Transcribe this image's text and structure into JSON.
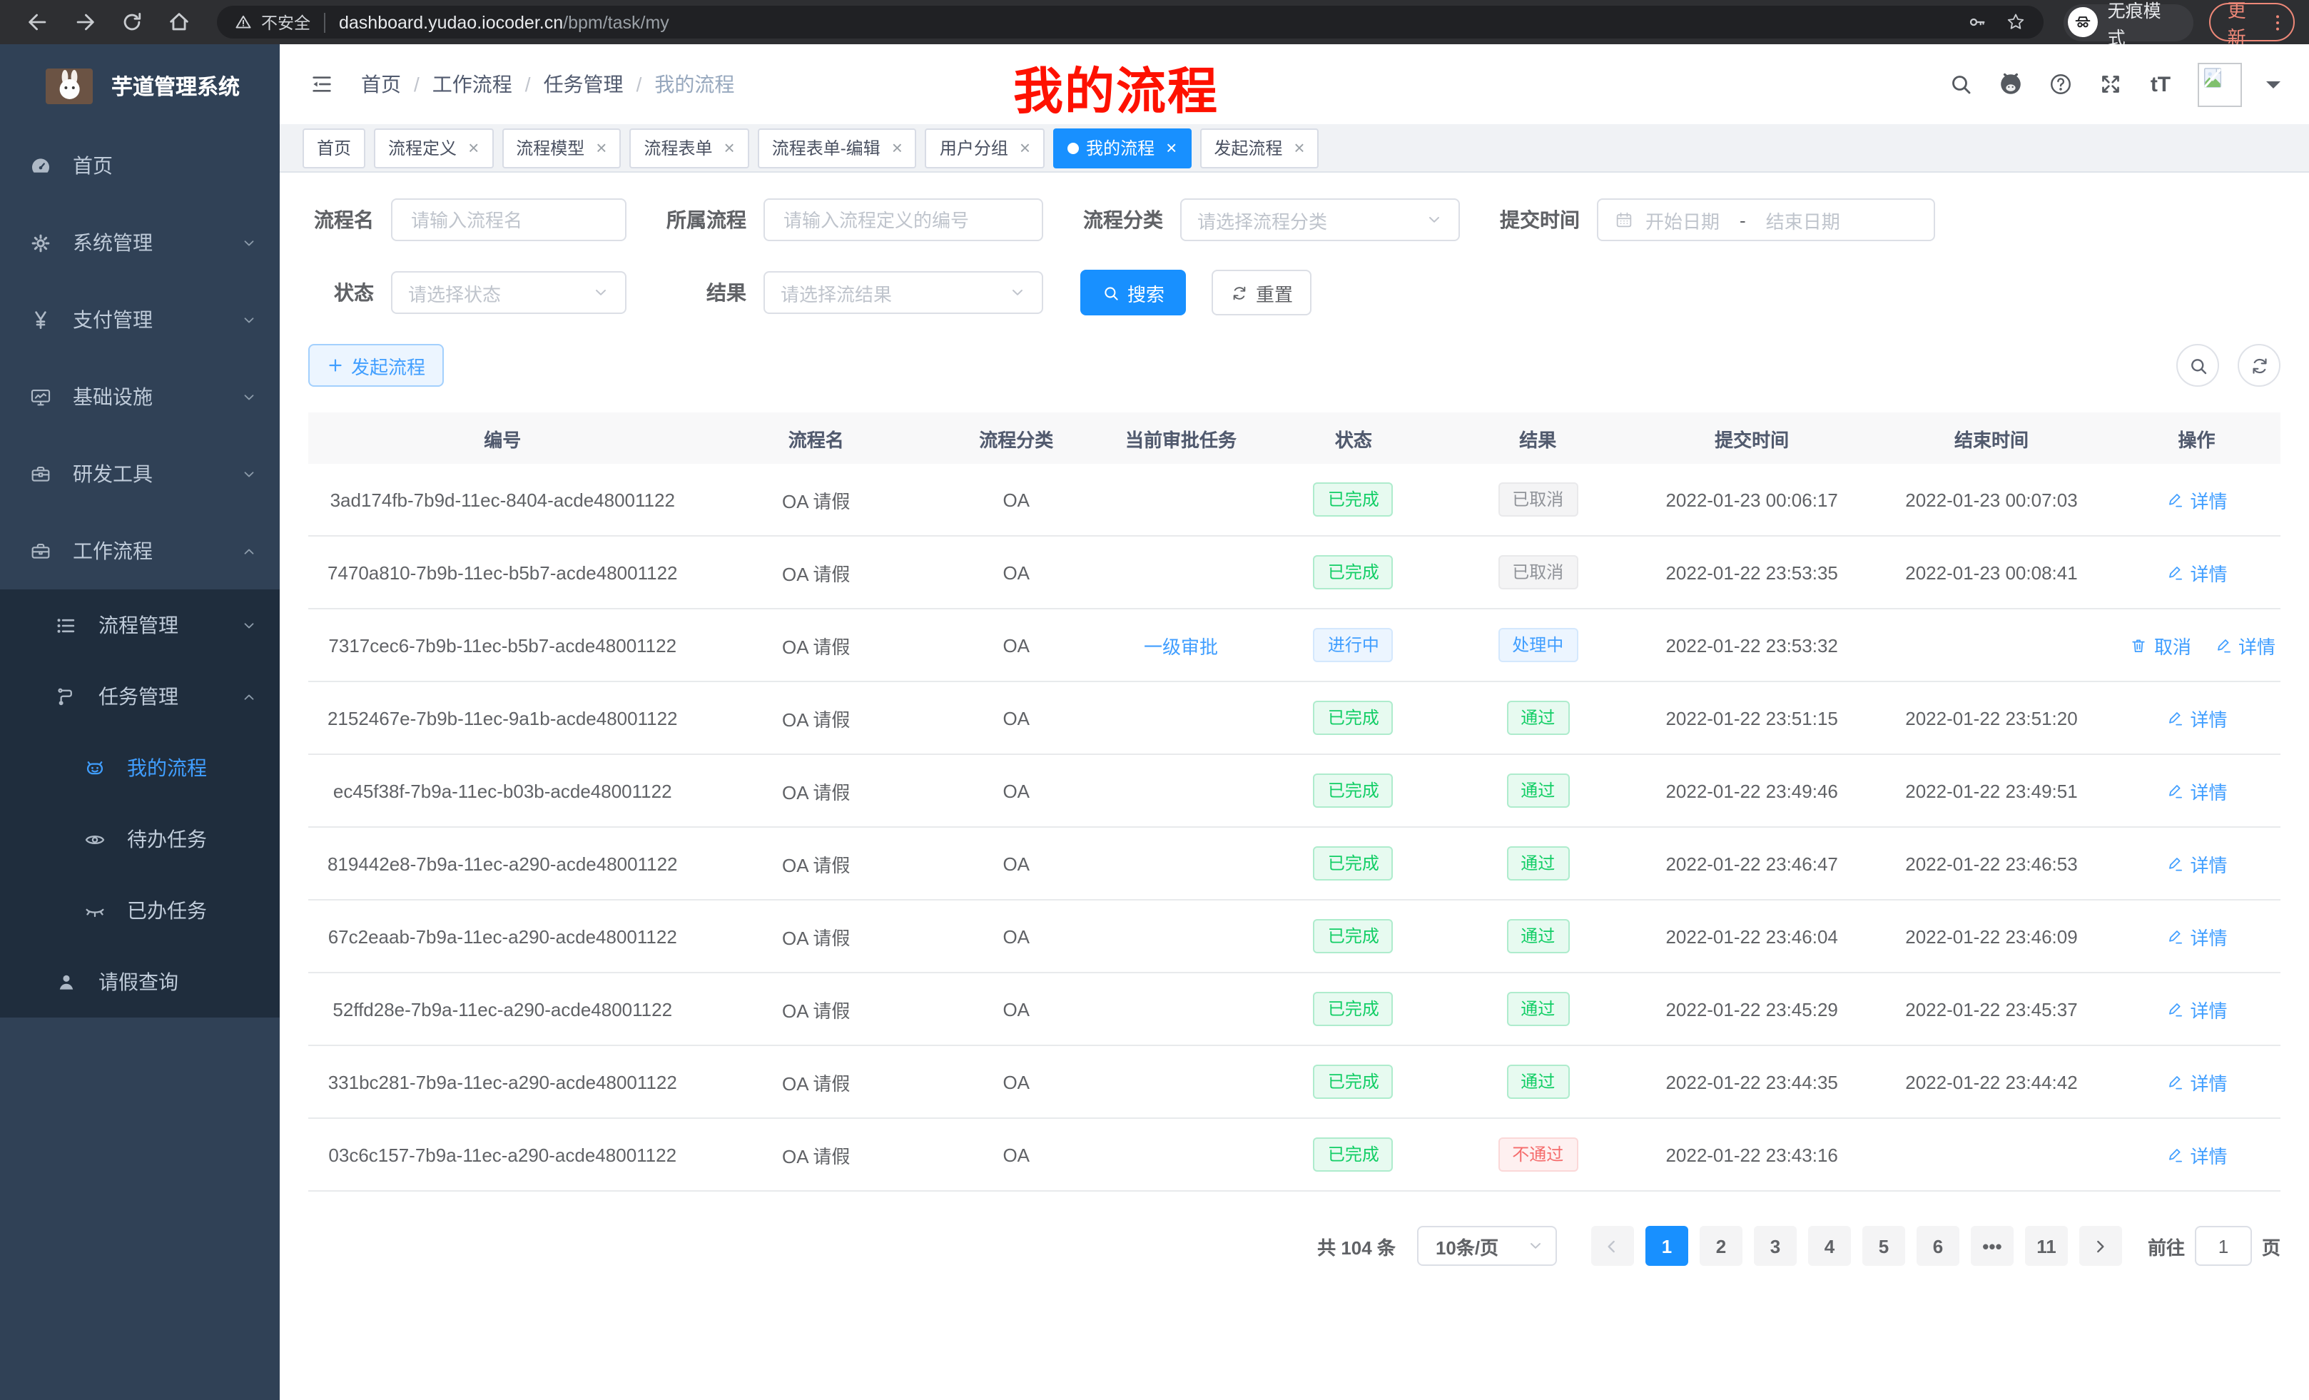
{
  "browser": {
    "security_label": "不安全",
    "url_host": "dashboard.yudao.iocoder.cn",
    "url_path": "/bpm/task/my",
    "nav_icons": [
      "back-icon",
      "forward-icon",
      "reload-icon",
      "home-icon"
    ],
    "addr_icons": [
      "key-icon",
      "star-icon"
    ],
    "incognito_label": "无痕模式",
    "update_label": "更新"
  },
  "sidebar": {
    "app_title": "芋道管理系统",
    "menu": [
      {
        "label": "首页",
        "icon": "dashboard-icon",
        "chevron": "",
        "level": 1,
        "active": false
      },
      {
        "label": "系统管理",
        "icon": "gear-icon",
        "chevron": "down",
        "level": 1,
        "active": false
      },
      {
        "label": "支付管理",
        "icon": "yen-icon",
        "chevron": "down",
        "level": 1,
        "active": false
      },
      {
        "label": "基础设施",
        "icon": "monitor-icon",
        "chevron": "down",
        "level": 1,
        "active": false
      },
      {
        "label": "研发工具",
        "icon": "toolbox-icon",
        "chevron": "down",
        "level": 1,
        "active": false
      },
      {
        "label": "工作流程",
        "icon": "briefcase-icon",
        "chevron": "up",
        "level": 1,
        "active": false
      }
    ],
    "submenu": [
      {
        "label": "流程管理",
        "icon": "list-icon",
        "chevron": "down",
        "level": 2,
        "active": false
      },
      {
        "label": "任务管理",
        "icon": "flow-icon",
        "chevron": "up",
        "level": 2,
        "active": false
      },
      {
        "label": "我的流程",
        "icon": "robot-icon",
        "chevron": "",
        "level": 3,
        "active": true
      },
      {
        "label": "待办任务",
        "icon": "eye-icon",
        "chevron": "",
        "level": 3,
        "active": false
      },
      {
        "label": "已办任务",
        "icon": "eye-closed-icon",
        "chevron": "",
        "level": 3,
        "active": false
      },
      {
        "label": "请假查询",
        "icon": "person-icon",
        "chevron": "",
        "level": 2,
        "active": false
      }
    ]
  },
  "header": {
    "breadcrumb": [
      "首页",
      "工作流程",
      "任务管理",
      "我的流程"
    ],
    "icons": [
      "search-icon",
      "github-icon",
      "help-icon",
      "fullscreen-icon",
      "font-size-icon"
    ],
    "annotation": "我的流程"
  },
  "tabs": [
    {
      "label": "首页",
      "closable": false,
      "active": false
    },
    {
      "label": "流程定义",
      "closable": true,
      "active": false
    },
    {
      "label": "流程模型",
      "closable": true,
      "active": false
    },
    {
      "label": "流程表单",
      "closable": true,
      "active": false
    },
    {
      "label": "流程表单-编辑",
      "closable": true,
      "active": false
    },
    {
      "label": "用户分组",
      "closable": true,
      "active": false
    },
    {
      "label": "我的流程",
      "closable": true,
      "active": true
    },
    {
      "label": "发起流程",
      "closable": true,
      "active": false
    }
  ],
  "filters": {
    "name_label": "流程名",
    "name_placeholder": "请输入流程名",
    "process_label": "所属流程",
    "process_placeholder": "请输入流程定义的编号",
    "category_label": "流程分类",
    "category_placeholder": "请选择流程分类",
    "time_label": "提交时间",
    "time_start_placeholder": "开始日期",
    "time_separator": "-",
    "time_end_placeholder": "结束日期",
    "status_label": "状态",
    "status_placeholder": "请选择状态",
    "result_label": "结果",
    "result_placeholder": "请选择流结果",
    "search_label": "搜索",
    "reset_label": "重置"
  },
  "toolbar": {
    "start_label": "发起流程",
    "right_icons": [
      "search-icon",
      "refresh-icon"
    ]
  },
  "table": {
    "columns": [
      "编号",
      "流程名",
      "流程分类",
      "当前审批任务",
      "状态",
      "结果",
      "提交时间",
      "结束时间",
      "操作"
    ],
    "rows": [
      {
        "id": "3ad174fb-7b9d-11ec-8404-acde48001122",
        "name": "OA 请假",
        "category": "OA",
        "task": "",
        "status": {
          "label": "已完成",
          "type": "success"
        },
        "result": {
          "label": "已取消",
          "type": "info"
        },
        "submit": "2022-01-23 00:06:17",
        "end": "2022-01-23 00:07:03",
        "actions": [
          {
            "label": "详情",
            "icon": "pen-icon"
          }
        ]
      },
      {
        "id": "7470a810-7b9b-11ec-b5b7-acde48001122",
        "name": "OA 请假",
        "category": "OA",
        "task": "",
        "status": {
          "label": "已完成",
          "type": "success"
        },
        "result": {
          "label": "已取消",
          "type": "info"
        },
        "submit": "2022-01-22 23:53:35",
        "end": "2022-01-23 00:08:41",
        "actions": [
          {
            "label": "详情",
            "icon": "pen-icon"
          }
        ]
      },
      {
        "id": "7317cec6-7b9b-11ec-b5b7-acde48001122",
        "name": "OA 请假",
        "category": "OA",
        "task": "一级审批",
        "status": {
          "label": "进行中",
          "type": "primary"
        },
        "result": {
          "label": "处理中",
          "type": "primary"
        },
        "submit": "2022-01-22 23:53:32",
        "end": "",
        "actions": [
          {
            "label": "取消",
            "icon": "trash-icon"
          },
          {
            "label": "详情",
            "icon": "pen-icon"
          }
        ]
      },
      {
        "id": "2152467e-7b9b-11ec-9a1b-acde48001122",
        "name": "OA 请假",
        "category": "OA",
        "task": "",
        "status": {
          "label": "已完成",
          "type": "success"
        },
        "result": {
          "label": "通过",
          "type": "success"
        },
        "submit": "2022-01-22 23:51:15",
        "end": "2022-01-22 23:51:20",
        "actions": [
          {
            "label": "详情",
            "icon": "pen-icon"
          }
        ]
      },
      {
        "id": "ec45f38f-7b9a-11ec-b03b-acde48001122",
        "name": "OA 请假",
        "category": "OA",
        "task": "",
        "status": {
          "label": "已完成",
          "type": "success"
        },
        "result": {
          "label": "通过",
          "type": "success"
        },
        "submit": "2022-01-22 23:49:46",
        "end": "2022-01-22 23:49:51",
        "actions": [
          {
            "label": "详情",
            "icon": "pen-icon"
          }
        ]
      },
      {
        "id": "819442e8-7b9a-11ec-a290-acde48001122",
        "name": "OA 请假",
        "category": "OA",
        "task": "",
        "status": {
          "label": "已完成",
          "type": "success"
        },
        "result": {
          "label": "通过",
          "type": "success"
        },
        "submit": "2022-01-22 23:46:47",
        "end": "2022-01-22 23:46:53",
        "actions": [
          {
            "label": "详情",
            "icon": "pen-icon"
          }
        ]
      },
      {
        "id": "67c2eaab-7b9a-11ec-a290-acde48001122",
        "name": "OA 请假",
        "category": "OA",
        "task": "",
        "status": {
          "label": "已完成",
          "type": "success"
        },
        "result": {
          "label": "通过",
          "type": "success"
        },
        "submit": "2022-01-22 23:46:04",
        "end": "2022-01-22 23:46:09",
        "actions": [
          {
            "label": "详情",
            "icon": "pen-icon"
          }
        ]
      },
      {
        "id": "52ffd28e-7b9a-11ec-a290-acde48001122",
        "name": "OA 请假",
        "category": "OA",
        "task": "",
        "status": {
          "label": "已完成",
          "type": "success"
        },
        "result": {
          "label": "通过",
          "type": "success"
        },
        "submit": "2022-01-22 23:45:29",
        "end": "2022-01-22 23:45:37",
        "actions": [
          {
            "label": "详情",
            "icon": "pen-icon"
          }
        ]
      },
      {
        "id": "331bc281-7b9a-11ec-a290-acde48001122",
        "name": "OA 请假",
        "category": "OA",
        "task": "",
        "status": {
          "label": "已完成",
          "type": "success"
        },
        "result": {
          "label": "通过",
          "type": "success"
        },
        "submit": "2022-01-22 23:44:35",
        "end": "2022-01-22 23:44:42",
        "actions": [
          {
            "label": "详情",
            "icon": "pen-icon"
          }
        ]
      },
      {
        "id": "03c6c157-7b9a-11ec-a290-acde48001122",
        "name": "OA 请假",
        "category": "OA",
        "task": "",
        "status": {
          "label": "已完成",
          "type": "success"
        },
        "result": {
          "label": "不通过",
          "type": "danger"
        },
        "submit": "2022-01-22 23:43:16",
        "end": "",
        "actions": [
          {
            "label": "详情",
            "icon": "pen-icon"
          }
        ]
      }
    ]
  },
  "pagination": {
    "total": "共 104 条",
    "page_size": "10条/页",
    "pages": [
      "1",
      "2",
      "3",
      "4",
      "5",
      "6",
      "•••",
      "11"
    ],
    "active_page": "1",
    "goto_label": "前往",
    "goto_value": "1",
    "goto_unit": "页"
  }
}
